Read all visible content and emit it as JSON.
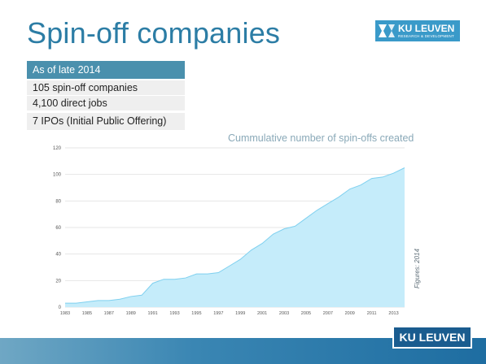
{
  "slide": {
    "title": "Spin-off companies",
    "logo_top_line1": "KU LEUVEN",
    "logo_top_line2": "RESEARCH & DEVELOPMENT",
    "logo_bottom": "KU LEUVEN",
    "figures_note": "Figures: 2014"
  },
  "stats": {
    "header": "As of late 2014",
    "items": [
      "105 spin-off companies",
      "4,100 direct jobs",
      "7 IPOs (Initial Public Offering)"
    ]
  },
  "chart_data": {
    "type": "area",
    "title": "Cummulative number of spin-offs created",
    "xlabel": "",
    "ylabel": "",
    "x": [
      1983,
      1984,
      1985,
      1986,
      1987,
      1988,
      1989,
      1990,
      1991,
      1992,
      1993,
      1994,
      1995,
      1996,
      1997,
      1998,
      1999,
      2000,
      2001,
      2002,
      2003,
      2004,
      2005,
      2006,
      2007,
      2008,
      2009,
      2010,
      2011,
      2012,
      2013,
      2014
    ],
    "values": [
      3,
      3,
      4,
      5,
      5,
      6,
      8,
      9,
      18,
      21,
      21,
      22,
      25,
      25,
      26,
      31,
      36,
      43,
      48,
      55,
      59,
      61,
      67,
      73,
      78,
      83,
      89,
      92,
      97,
      98,
      101,
      105
    ],
    "x_tick_labels": [
      "1983",
      "1985",
      "1987",
      "1989",
      "1991",
      "1993",
      "1995",
      "1997",
      "1999",
      "2001",
      "2003",
      "2005",
      "2007",
      "2009",
      "2011",
      "2013"
    ],
    "y_ticks": [
      0,
      20,
      40,
      60,
      80,
      100,
      120
    ],
    "ylim": [
      0,
      120
    ],
    "xlim": [
      1983,
      2014
    ],
    "grid": true,
    "colors": {
      "fill": "#c5ecfa",
      "line": "#7fd0ef",
      "grid": "#e6e6e6"
    }
  }
}
